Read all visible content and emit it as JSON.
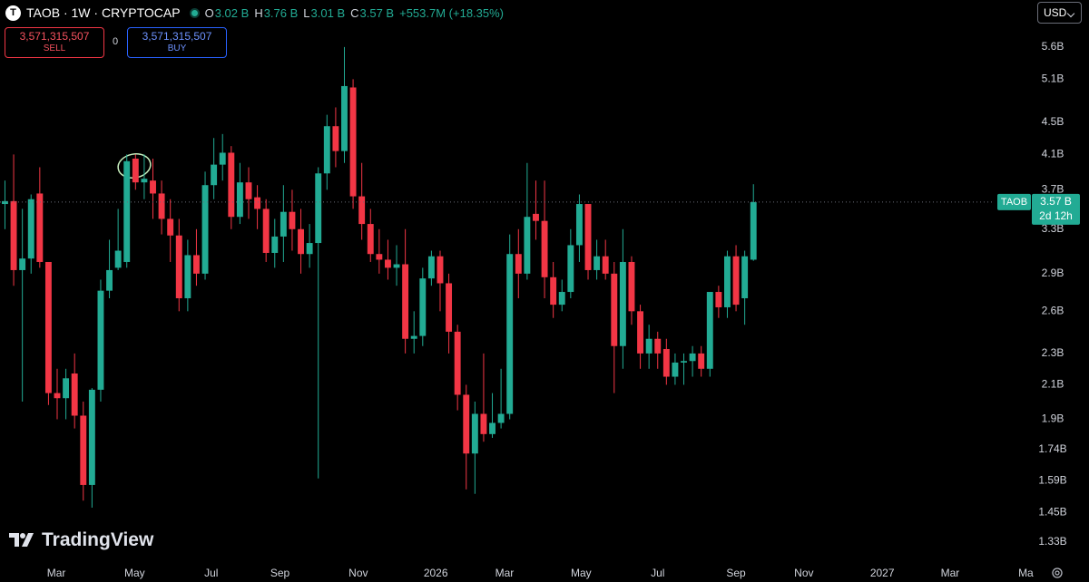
{
  "chart_data": {
    "type": "candlestick",
    "log_scale": true,
    "grid": false,
    "up_color": "#22ab94",
    "down_color": "#f23645",
    "series": [
      {
        "name": "TAOB",
        "open": [
          3.55,
          3.58,
          2.93,
          3.03,
          3.66,
          3.0,
          2.05,
          2.02,
          2.17,
          1.92,
          1.57,
          2.07,
          2.76,
          2.95,
          3.0,
          4.05,
          3.78,
          3.8,
          3.66,
          3.4,
          3.24,
          2.7,
          3.06,
          2.9,
          3.75,
          3.98,
          4.12,
          3.42,
          3.78,
          3.62,
          3.5,
          3.08,
          3.23,
          3.47,
          3.3,
          3.07,
          3.17,
          3.88,
          4.45,
          4.14,
          4.98,
          3.63,
          3.35,
          3.07,
          3.02,
          2.95,
          2.98,
          2.4,
          2.42,
          2.86,
          3.05,
          2.82,
          2.45,
          2.04,
          1.72,
          1.93,
          1.82,
          1.88,
          1.93,
          3.07,
          2.9,
          3.45,
          3.38,
          2.87,
          2.65,
          2.75,
          3.15,
          3.55,
          2.93,
          3.05,
          2.9,
          2.35,
          3.0,
          2.6,
          2.3,
          2.4,
          2.33,
          2.15,
          2.24,
          2.25,
          2.3,
          2.2,
          2.75,
          2.63,
          3.05,
          2.7,
          3.02
        ],
        "high": [
          3.8,
          4.1,
          3.5,
          3.65,
          3.95,
          3.0,
          2.2,
          2.2,
          2.3,
          2.0,
          2.08,
          2.85,
          3.2,
          3.5,
          4.1,
          4.1,
          4.1,
          4.05,
          3.8,
          3.6,
          3.4,
          3.2,
          3.3,
          3.9,
          4.3,
          4.35,
          4.2,
          4.0,
          3.95,
          3.75,
          3.6,
          3.4,
          3.75,
          3.7,
          3.5,
          3.35,
          3.95,
          4.6,
          4.7,
          5.6,
          5.1,
          4.0,
          3.5,
          3.3,
          3.2,
          3.15,
          3.3,
          2.6,
          2.95,
          3.1,
          3.1,
          2.9,
          2.5,
          2.1,
          2.0,
          2.3,
          2.05,
          2.2,
          3.25,
          3.3,
          4.0,
          3.8,
          3.8,
          3.0,
          2.85,
          3.3,
          3.65,
          3.55,
          3.2,
          3.2,
          3.0,
          3.3,
          3.05,
          2.65,
          2.5,
          2.45,
          2.4,
          2.3,
          2.3,
          2.35,
          2.35,
          2.75,
          2.8,
          3.1,
          3.15,
          3.1,
          3.76
        ],
        "low": [
          3.3,
          2.8,
          2.0,
          2.9,
          2.95,
          1.98,
          1.9,
          1.9,
          1.85,
          1.5,
          1.47,
          2.0,
          2.7,
          2.93,
          2.95,
          3.7,
          3.6,
          3.4,
          3.25,
          3.0,
          2.6,
          2.6,
          2.8,
          2.85,
          3.6,
          3.8,
          3.3,
          3.35,
          3.4,
          3.3,
          3.0,
          2.95,
          3.0,
          3.1,
          2.9,
          2.95,
          1.6,
          3.7,
          3.95,
          4.0,
          3.5,
          3.2,
          3.0,
          2.9,
          2.85,
          2.8,
          2.3,
          2.3,
          2.35,
          2.8,
          2.6,
          2.3,
          1.95,
          1.55,
          1.53,
          1.78,
          1.8,
          1.85,
          1.9,
          2.7,
          2.85,
          3.2,
          2.7,
          2.55,
          2.6,
          2.7,
          3.0,
          2.85,
          2.85,
          2.85,
          2.05,
          2.2,
          2.5,
          2.2,
          2.2,
          2.2,
          2.1,
          2.1,
          2.1,
          2.15,
          2.15,
          2.15,
          2.55,
          2.55,
          2.6,
          2.5,
          3.01
        ],
        "close": [
          3.58,
          2.93,
          3.03,
          3.6,
          3.0,
          2.05,
          2.02,
          2.14,
          1.92,
          1.57,
          2.07,
          2.76,
          2.93,
          3.1,
          4.02,
          3.78,
          3.82,
          3.66,
          3.4,
          3.24,
          2.7,
          3.06,
          2.9,
          3.75,
          3.98,
          4.12,
          3.42,
          3.78,
          3.6,
          3.5,
          3.08,
          3.23,
          3.47,
          3.3,
          3.07,
          3.17,
          3.88,
          4.45,
          4.14,
          5.0,
          3.63,
          3.35,
          3.07,
          3.02,
          2.95,
          2.98,
          2.4,
          2.42,
          2.86,
          3.05,
          2.82,
          2.45,
          2.04,
          1.72,
          1.93,
          1.82,
          1.88,
          1.93,
          3.07,
          2.9,
          3.42,
          3.38,
          2.87,
          2.65,
          2.75,
          3.15,
          3.55,
          2.93,
          3.05,
          2.9,
          2.35,
          3.0,
          2.6,
          2.3,
          2.4,
          2.3,
          2.15,
          2.24,
          2.25,
          2.3,
          2.2,
          2.75,
          2.63,
          3.05,
          2.65,
          3.05,
          3.57
        ]
      }
    ],
    "ylim": [
      1.255,
      6.42
    ],
    "yticks": [
      {
        "value": 5.6,
        "label": "5.6B"
      },
      {
        "value": 5.1,
        "label": "5.1B"
      },
      {
        "value": 4.5,
        "label": "4.5B"
      },
      {
        "value": 4.1,
        "label": "4.1B"
      },
      {
        "value": 3.7,
        "label": "3.7B"
      },
      {
        "value": 3.3,
        "label": "3.3B"
      },
      {
        "value": 2.9,
        "label": "2.9B"
      },
      {
        "value": 2.6,
        "label": "2.6B"
      },
      {
        "value": 2.3,
        "label": "2.3B"
      },
      {
        "value": 2.1,
        "label": "2.1B"
      },
      {
        "value": 1.9,
        "label": "1.9B"
      },
      {
        "value": 1.74,
        "label": "1.74B"
      },
      {
        "value": 1.59,
        "label": "1.59B"
      },
      {
        "value": 1.45,
        "label": "1.45B"
      },
      {
        "value": 1.33,
        "label": "1.33B"
      }
    ],
    "xlim": [
      -0.57,
      118.3
    ],
    "xticks": [
      {
        "value": 5.9,
        "label": "Mar"
      },
      {
        "value": 14.9,
        "label": "May"
      },
      {
        "value": 23.7,
        "label": "Jul"
      },
      {
        "value": 31.6,
        "label": "Sep"
      },
      {
        "value": 40.6,
        "label": "Nov"
      },
      {
        "value": 49.5,
        "label": "2026"
      },
      {
        "value": 57.4,
        "label": "Mar"
      },
      {
        "value": 66.2,
        "label": "May"
      },
      {
        "value": 75.0,
        "label": "Jul"
      },
      {
        "value": 84.0,
        "label": "Sep"
      },
      {
        "value": 91.8,
        "label": "Nov"
      },
      {
        "value": 100.8,
        "label": "2027"
      },
      {
        "value": 108.6,
        "label": "Mar"
      },
      {
        "value": 117.3,
        "label": "Ma"
      }
    ]
  },
  "ui": {
    "symbol_line": "TAOB · 1W · CRYPTOCAP",
    "icon": "T",
    "ohlc": [
      {
        "label": "O",
        "value": "3.02 B"
      },
      {
        "label": "H",
        "value": "3.76 B"
      },
      {
        "label": "L",
        "value": "3.01 B"
      },
      {
        "label": "C",
        "value": "3.57 B"
      }
    ],
    "change": "+553.7M (+18.35%)",
    "sell": {
      "price": "3,571,315,507",
      "label": "SELL"
    },
    "spread": "0",
    "buy": {
      "price": "3,571,315,507",
      "label": "BUY"
    },
    "currency": "USD",
    "price_tag": {
      "symbol": "TAOB",
      "price": "3.57 B",
      "countdown": "2d 12h"
    },
    "logo": "TradingView"
  }
}
